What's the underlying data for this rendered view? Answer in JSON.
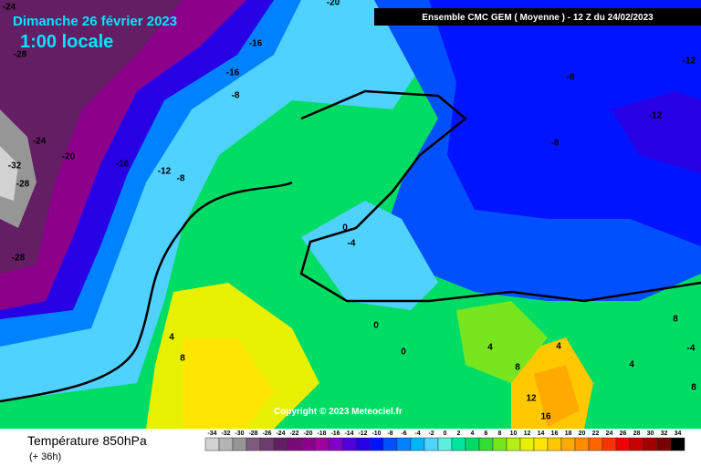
{
  "header": {
    "title": "Dimanche 26 février 2023",
    "time": "1:00 locale",
    "model": "Ensemble CMC GEM  ( Moyenne )  -  12 Z du 24/02/2023"
  },
  "copyright": "Copyright © 2023 Meteociel.fr",
  "footer": {
    "title": "Température 850hPa",
    "lead": "(+ 36h)"
  },
  "contour_labels": [
    -24,
    -20,
    -28,
    -16,
    -16,
    -8,
    -8,
    -12,
    -12,
    -8,
    -24,
    -20,
    -16,
    -12,
    -8,
    -32,
    -28,
    -28,
    0,
    -4,
    0,
    0,
    4,
    8,
    4,
    8,
    4,
    4,
    8,
    -4,
    12,
    16,
    8
  ],
  "legend": {
    "labels": [
      -34,
      -32,
      -30,
      -28,
      -26,
      -24,
      -22,
      -20,
      -18,
      -16,
      -14,
      -12,
      -10,
      -8,
      -6,
      -4,
      -2,
      0,
      2,
      4,
      6,
      8,
      10,
      12,
      14,
      16,
      18,
      20,
      22,
      24,
      26,
      28,
      30,
      32,
      34
    ],
    "colors": [
      "#d2d2d2",
      "#b4b4b4",
      "#969696",
      "#7d5a7d",
      "#6e3c6e",
      "#641e64",
      "#780a78",
      "#8c008c",
      "#a000a0",
      "#8200c8",
      "#5000dc",
      "#2800e6",
      "#0014ff",
      "#0050ff",
      "#0082ff",
      "#00b4ff",
      "#50d2ff",
      "#5af0dc",
      "#00e6a0",
      "#00dc64",
      "#32dc32",
      "#78e61e",
      "#b4f014",
      "#e6f000",
      "#ffe600",
      "#ffc800",
      "#ffaa00",
      "#ff8c00",
      "#ff6400",
      "#ff3200",
      "#f00000",
      "#c80000",
      "#a00000",
      "#780000",
      "#000000"
    ]
  }
}
